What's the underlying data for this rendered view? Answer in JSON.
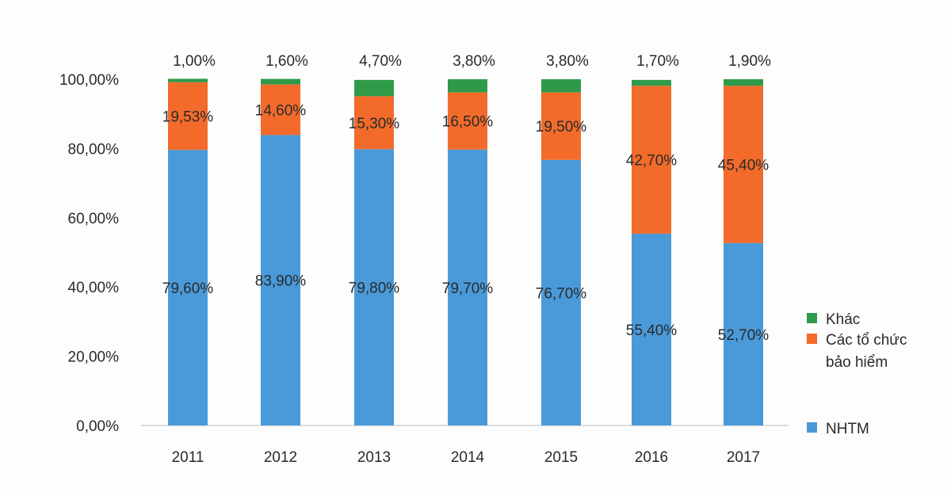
{
  "chart_data": {
    "type": "bar",
    "stacked": true,
    "categories": [
      "2011",
      "2012",
      "2013",
      "2014",
      "2015",
      "2016",
      "2017"
    ],
    "series": [
      {
        "name": "NHTM",
        "color": "#4a9ad9",
        "values": [
          79.6,
          83.9,
          79.8,
          79.7,
          76.7,
          55.4,
          52.7
        ],
        "labels": [
          "79,60%",
          "83,90%",
          "79,80%",
          "79,70%",
          "76,70%",
          "55,40%",
          "52,70%"
        ]
      },
      {
        "name": "Các tổ chức bảo hiểm",
        "color": "#f26b2b",
        "values": [
          19.53,
          14.6,
          15.3,
          16.5,
          19.5,
          42.7,
          45.4
        ],
        "labels": [
          "19,53%",
          "14,60%",
          "15,30%",
          "16,50%",
          "19,50%",
          "42,70%",
          "45,40%"
        ]
      },
      {
        "name": "Khác",
        "color": "#2f9b4a",
        "values": [
          1.0,
          1.6,
          4.7,
          3.8,
          3.8,
          1.7,
          1.9
        ],
        "labels": [
          "1,00%",
          "1,60%",
          "4,70%",
          "3,80%",
          "3,80%",
          "1,70%",
          "1,90%"
        ]
      }
    ],
    "ylim": [
      0,
      100
    ],
    "yticks": [
      "0,00%",
      "20,00%",
      "40,00%",
      "60,00%",
      "80,00%",
      "100,00%"
    ],
    "legend_position": "right",
    "legend": [
      {
        "lines": [
          "Khác"
        ],
        "color": "#2f9b4a"
      },
      {
        "lines": [
          "Các tổ chức",
          "bảo hiểm"
        ],
        "color": "#f26b2b"
      },
      {
        "lines": [
          "NHTM"
        ],
        "color": "#4a9ad9"
      }
    ],
    "grid": false
  }
}
